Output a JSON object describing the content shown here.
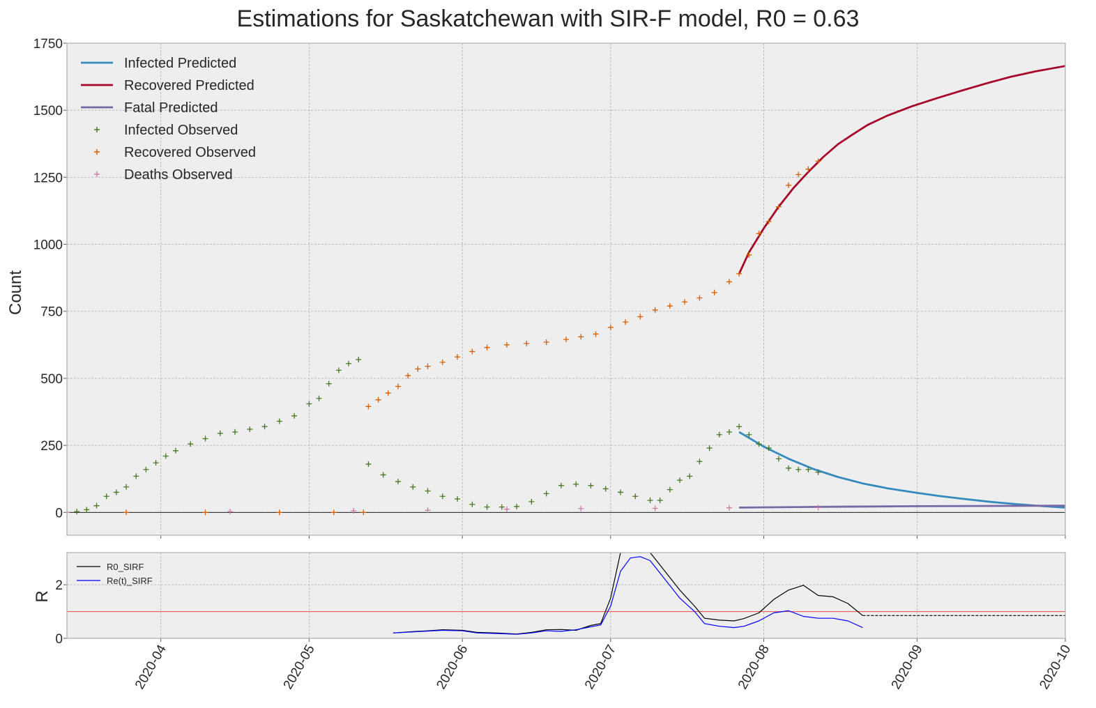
{
  "chart_data": [
    {
      "type": "line",
      "title": "Estimations for Saskatchewan with SIR-F model, R0 = 0.63",
      "ylabel": "Count",
      "xlim": [
        "2020-03-13",
        "2020-10-01"
      ],
      "ylim": [
        -85,
        1750
      ],
      "yticks": [
        0,
        250,
        500,
        750,
        1000,
        1250,
        1500,
        1750
      ],
      "xticks": [
        "2020-04",
        "2020-05",
        "2020-06",
        "2020-07",
        "2020-08",
        "2020-09",
        "2020-10"
      ],
      "grid": true,
      "legend": "top-left",
      "colors": {
        "infected_pred": "#348abd",
        "recovered_pred": "#a60628",
        "fatal_pred": "#7a68a6",
        "infected_obs": "#467821",
        "recovered_obs": "#d55e00",
        "deaths_obs": "#cc79a7"
      },
      "series": [
        {
          "name": "Infected Predicted",
          "kind": "line",
          "color_key": "infected_pred",
          "x": [
            "2020-07-27",
            "2020-08-01",
            "2020-08-06",
            "2020-08-11",
            "2020-08-16",
            "2020-08-21",
            "2020-08-26",
            "2020-09-01",
            "2020-09-06",
            "2020-09-11",
            "2020-09-16",
            "2020-09-21",
            "2020-09-26",
            "2020-10-01"
          ],
          "y": [
            300,
            245,
            200,
            162,
            132,
            108,
            90,
            73,
            60,
            49,
            39,
            31,
            24,
            18
          ]
        },
        {
          "name": "Recovered Predicted",
          "kind": "line",
          "color_key": "recovered_pred",
          "x": [
            "2020-07-27",
            "2020-07-29",
            "2020-08-01",
            "2020-08-04",
            "2020-08-07",
            "2020-08-10",
            "2020-08-13",
            "2020-08-16",
            "2020-08-19",
            "2020-08-22",
            "2020-08-26",
            "2020-08-31",
            "2020-09-05",
            "2020-09-10",
            "2020-09-15",
            "2020-09-20",
            "2020-09-25",
            "2020-10-01"
          ],
          "y": [
            890,
            970,
            1060,
            1140,
            1210,
            1270,
            1325,
            1373,
            1410,
            1445,
            1480,
            1515,
            1545,
            1573,
            1600,
            1625,
            1645,
            1665
          ]
        },
        {
          "name": "Fatal Predicted",
          "kind": "line",
          "color_key": "fatal_pred",
          "x": [
            "2020-07-27",
            "2020-08-15",
            "2020-09-01",
            "2020-10-01"
          ],
          "y": [
            18,
            21,
            23,
            25
          ]
        },
        {
          "name": "Infected Observed",
          "kind": "scatter",
          "color_key": "infected_obs",
          "x": [
            "2020-03-13",
            "2020-03-15",
            "2020-03-17",
            "2020-03-19",
            "2020-03-21",
            "2020-03-23",
            "2020-03-25",
            "2020-03-27",
            "2020-03-29",
            "2020-03-31",
            "2020-04-02",
            "2020-04-04",
            "2020-04-07",
            "2020-04-10",
            "2020-04-13",
            "2020-04-16",
            "2020-04-19",
            "2020-04-22",
            "2020-04-25",
            "2020-04-28",
            "2020-05-01",
            "2020-05-03",
            "2020-05-05",
            "2020-05-07",
            "2020-05-09",
            "2020-05-11",
            "2020-05-13",
            "2020-05-16",
            "2020-05-19",
            "2020-05-22",
            "2020-05-25",
            "2020-05-28",
            "2020-05-31",
            "2020-06-03",
            "2020-06-06",
            "2020-06-09",
            "2020-06-12",
            "2020-06-15",
            "2020-06-18",
            "2020-06-21",
            "2020-06-24",
            "2020-06-27",
            "2020-06-30",
            "2020-07-03",
            "2020-07-06",
            "2020-07-09",
            "2020-07-11",
            "2020-07-13",
            "2020-07-15",
            "2020-07-17",
            "2020-07-19",
            "2020-07-21",
            "2020-07-23",
            "2020-07-25",
            "2020-07-27",
            "2020-07-29",
            "2020-07-31",
            "2020-08-02",
            "2020-08-04",
            "2020-08-06",
            "2020-08-08",
            "2020-08-10",
            "2020-08-12"
          ],
          "y": [
            0,
            3,
            10,
            25,
            60,
            75,
            95,
            135,
            160,
            185,
            210,
            230,
            255,
            275,
            295,
            300,
            310,
            320,
            340,
            360,
            405,
            425,
            480,
            530,
            555,
            570,
            180,
            140,
            115,
            95,
            80,
            60,
            50,
            30,
            20,
            20,
            22,
            40,
            70,
            100,
            105,
            100,
            88,
            75,
            60,
            45,
            45,
            85,
            120,
            135,
            190,
            240,
            290,
            300,
            320,
            290,
            255,
            240,
            200,
            165,
            160,
            160,
            150
          ]
        },
        {
          "name": "Recovered Observed",
          "kind": "scatter",
          "color_key": "recovered_obs",
          "x": [
            "2020-03-13",
            "2020-03-25",
            "2020-04-10",
            "2020-04-25",
            "2020-05-06",
            "2020-05-12",
            "2020-05-13",
            "2020-05-15",
            "2020-05-17",
            "2020-05-19",
            "2020-05-21",
            "2020-05-23",
            "2020-05-25",
            "2020-05-28",
            "2020-05-31",
            "2020-06-03",
            "2020-06-06",
            "2020-06-10",
            "2020-06-14",
            "2020-06-18",
            "2020-06-22",
            "2020-06-25",
            "2020-06-28",
            "2020-07-01",
            "2020-07-04",
            "2020-07-07",
            "2020-07-10",
            "2020-07-13",
            "2020-07-16",
            "2020-07-19",
            "2020-07-22",
            "2020-07-25",
            "2020-07-27",
            "2020-07-29",
            "2020-07-31",
            "2020-08-02",
            "2020-08-04",
            "2020-08-06",
            "2020-08-08",
            "2020-08-10",
            "2020-08-12"
          ],
          "y": [
            0,
            0,
            0,
            0,
            0,
            0,
            395,
            420,
            445,
            470,
            510,
            535,
            545,
            560,
            580,
            600,
            615,
            625,
            630,
            635,
            645,
            655,
            665,
            690,
            710,
            730,
            755,
            770,
            785,
            800,
            820,
            860,
            890,
            960,
            1040,
            1085,
            1140,
            1220,
            1260,
            1280,
            1310
          ]
        },
        {
          "name": "Deaths Observed",
          "kind": "scatter",
          "color_key": "deaths_obs",
          "x": [
            "2020-03-13",
            "2020-04-15",
            "2020-05-10",
            "2020-05-25",
            "2020-06-10",
            "2020-06-25",
            "2020-07-10",
            "2020-07-25",
            "2020-08-12"
          ],
          "y": [
            0,
            3,
            6,
            8,
            12,
            14,
            15,
            17,
            18
          ]
        }
      ]
    },
    {
      "type": "line",
      "ylabel": "R",
      "ylim": [
        0,
        3.2
      ],
      "yticks": [
        0,
        2
      ],
      "reference_line": {
        "y": 1,
        "color": "#e8443a"
      },
      "legend": "top-left",
      "series": [
        {
          "name": "R0_SIRF",
          "color": "#000000",
          "x": [
            "2020-05-18",
            "2020-05-22",
            "2020-05-25",
            "2020-05-28",
            "2020-06-01",
            "2020-06-04",
            "2020-06-08",
            "2020-06-12",
            "2020-06-15",
            "2020-06-18",
            "2020-06-21",
            "2020-06-24",
            "2020-06-27",
            "2020-06-29",
            "2020-07-01",
            "2020-07-03",
            "2020-07-05",
            "2020-07-07",
            "2020-07-09",
            "2020-07-12",
            "2020-07-15",
            "2020-07-18",
            "2020-07-20",
            "2020-07-23",
            "2020-07-26",
            "2020-07-28",
            "2020-07-31",
            "2020-08-03",
            "2020-08-06",
            "2020-08-09",
            "2020-08-12",
            "2020-08-15",
            "2020-08-18",
            "2020-08-21"
          ],
          "y": [
            0.2,
            0.25,
            0.28,
            0.32,
            0.3,
            0.22,
            0.2,
            0.16,
            0.22,
            0.32,
            0.33,
            0.3,
            0.48,
            0.55,
            1.5,
            3.2,
            3.5,
            3.5,
            3.2,
            2.5,
            1.8,
            1.2,
            0.75,
            0.68,
            0.65,
            0.74,
            0.95,
            1.45,
            1.8,
            1.98,
            1.6,
            1.55,
            1.3,
            0.85
          ]
        },
        {
          "name": "R0_SIRF (projected)",
          "color": "#000000",
          "dashed": true,
          "x": [
            "2020-08-21",
            "2020-10-01"
          ],
          "y": [
            0.85,
            0.85
          ]
        },
        {
          "name": "Re(t)_SIRF",
          "color": "#0000ff",
          "x": [
            "2020-05-18",
            "2020-05-22",
            "2020-05-25",
            "2020-05-28",
            "2020-06-01",
            "2020-06-04",
            "2020-06-08",
            "2020-06-12",
            "2020-06-15",
            "2020-06-18",
            "2020-06-21",
            "2020-06-24",
            "2020-06-27",
            "2020-06-29",
            "2020-07-01",
            "2020-07-03",
            "2020-07-05",
            "2020-07-07",
            "2020-07-09",
            "2020-07-12",
            "2020-07-15",
            "2020-07-18",
            "2020-07-20",
            "2020-07-23",
            "2020-07-26",
            "2020-07-28",
            "2020-07-31",
            "2020-08-03",
            "2020-08-06",
            "2020-08-09",
            "2020-08-12",
            "2020-08-15",
            "2020-08-18",
            "2020-08-21"
          ],
          "y": [
            0.2,
            0.24,
            0.27,
            0.3,
            0.28,
            0.2,
            0.18,
            0.15,
            0.2,
            0.28,
            0.26,
            0.32,
            0.43,
            0.5,
            1.2,
            2.5,
            3.0,
            3.05,
            2.9,
            2.2,
            1.5,
            1.0,
            0.55,
            0.45,
            0.4,
            0.45,
            0.65,
            0.95,
            1.03,
            0.82,
            0.75,
            0.75,
            0.65,
            0.4
          ]
        }
      ]
    }
  ]
}
